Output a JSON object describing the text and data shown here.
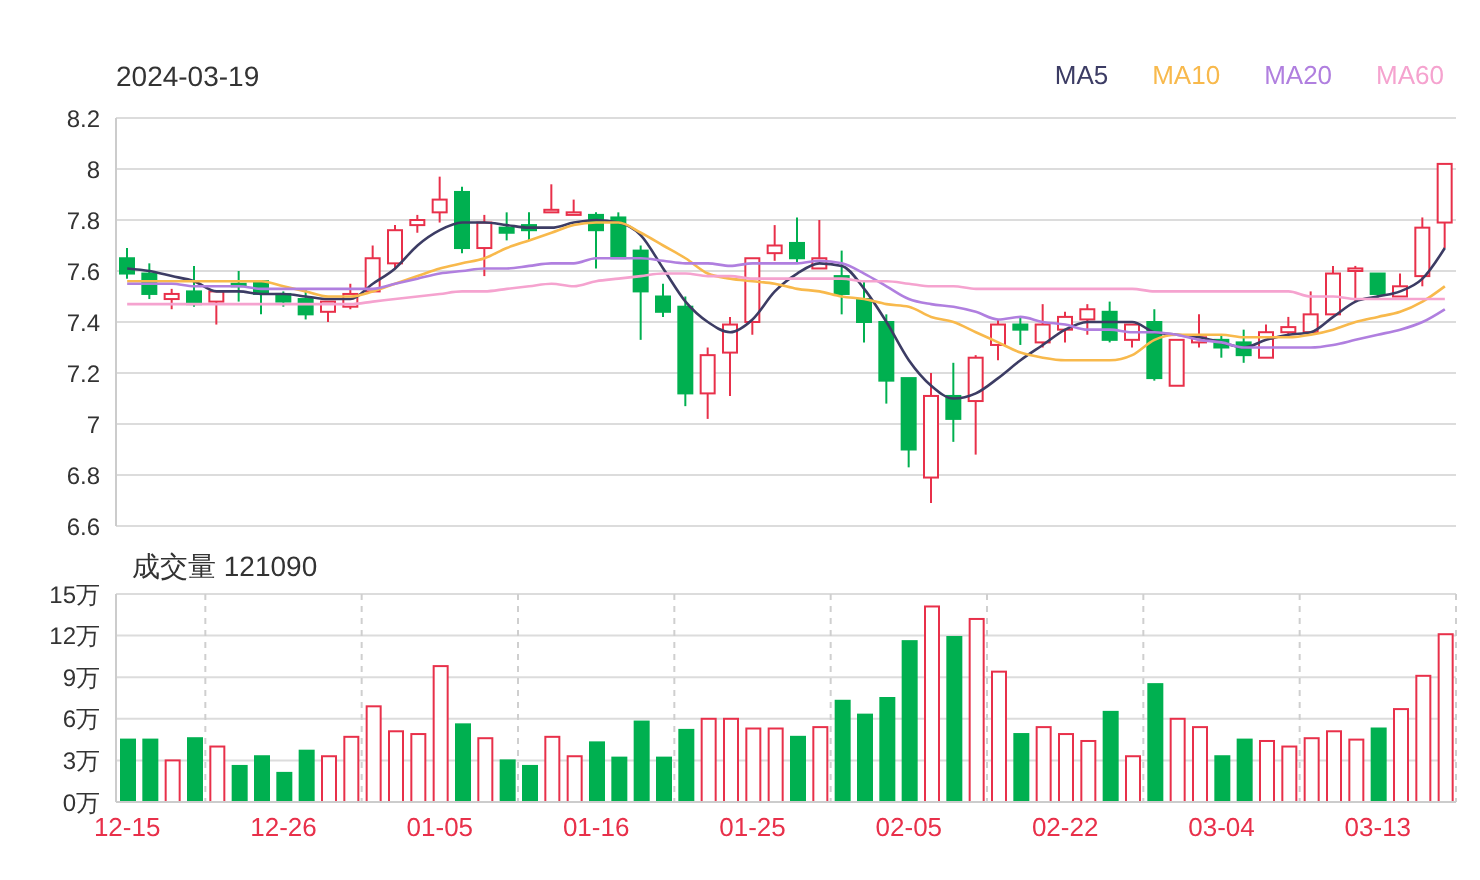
{
  "chart_data": [
    {
      "type": "candlestick",
      "title": "2024-03-19",
      "legend": "top right",
      "grid": true,
      "tick_labels": "y",
      "categories": [
        null,
        null,
        null,
        null,
        null,
        null,
        null,
        null,
        null,
        null,
        null,
        null,
        null,
        null,
        null,
        null,
        null,
        null,
        null,
        null,
        null,
        null,
        null,
        null,
        null,
        null,
        null,
        null,
        null,
        null,
        null,
        null,
        null,
        null,
        null,
        null,
        null,
        null,
        null,
        null,
        null,
        null,
        null,
        null,
        null,
        null,
        null,
        null,
        null,
        null,
        null,
        null,
        null,
        null,
        null,
        null,
        null,
        null,
        null,
        null
      ],
      "ylim": [
        6.6,
        8.2
      ],
      "yticks": [
        6.6,
        6.8,
        7,
        7.2,
        7.4,
        7.6,
        7.8,
        8,
        8.2
      ],
      "ohlc": [
        [
          7.65,
          7.69,
          7.57,
          7.59
        ],
        [
          7.59,
          7.63,
          7.49,
          7.51
        ],
        [
          7.49,
          7.53,
          7.45,
          7.51
        ],
        [
          7.52,
          7.62,
          7.46,
          7.47
        ],
        [
          7.48,
          7.52,
          7.39,
          7.52
        ],
        [
          7.55,
          7.6,
          7.48,
          7.54
        ],
        [
          7.56,
          7.56,
          7.43,
          7.51
        ],
        [
          7.51,
          7.52,
          7.46,
          7.48
        ],
        [
          7.49,
          7.53,
          7.41,
          7.43
        ],
        [
          7.44,
          7.48,
          7.4,
          7.48
        ],
        [
          7.46,
          7.55,
          7.45,
          7.51
        ],
        [
          7.52,
          7.7,
          7.52,
          7.65
        ],
        [
          7.63,
          7.78,
          7.61,
          7.76
        ],
        [
          7.78,
          7.82,
          7.75,
          7.8
        ],
        [
          7.83,
          7.97,
          7.79,
          7.88
        ],
        [
          7.91,
          7.93,
          7.67,
          7.69
        ],
        [
          7.69,
          7.82,
          7.58,
          7.79
        ],
        [
          7.77,
          7.83,
          7.72,
          7.75
        ],
        [
          7.78,
          7.83,
          7.72,
          7.76
        ],
        [
          7.83,
          7.94,
          7.83,
          7.84
        ],
        [
          7.82,
          7.88,
          7.82,
          7.83
        ],
        [
          7.82,
          7.83,
          7.61,
          7.76
        ],
        [
          7.81,
          7.83,
          7.65,
          7.65
        ],
        [
          7.68,
          7.7,
          7.33,
          7.52
        ],
        [
          7.5,
          7.55,
          7.42,
          7.44
        ],
        [
          7.46,
          7.5,
          7.07,
          7.12
        ],
        [
          7.12,
          7.3,
          7.02,
          7.27
        ],
        [
          7.28,
          7.42,
          7.11,
          7.39
        ],
        [
          7.4,
          7.65,
          7.35,
          7.65
        ],
        [
          7.67,
          7.78,
          7.64,
          7.7
        ],
        [
          7.71,
          7.81,
          7.63,
          7.65
        ],
        [
          7.61,
          7.8,
          7.61,
          7.65
        ],
        [
          7.58,
          7.68,
          7.43,
          7.51
        ],
        [
          7.49,
          7.56,
          7.32,
          7.4
        ],
        [
          7.4,
          7.43,
          7.08,
          7.17
        ],
        [
          7.18,
          7.18,
          6.83,
          6.9
        ],
        [
          6.79,
          7.2,
          6.69,
          7.11
        ],
        [
          7.11,
          7.24,
          6.93,
          7.02
        ],
        [
          7.09,
          7.27,
          6.88,
          7.26
        ],
        [
          7.31,
          7.41,
          7.25,
          7.39
        ],
        [
          7.39,
          7.42,
          7.31,
          7.37
        ],
        [
          7.32,
          7.47,
          7.3,
          7.39
        ],
        [
          7.37,
          7.44,
          7.32,
          7.42
        ],
        [
          7.41,
          7.47,
          7.35,
          7.45
        ],
        [
          7.44,
          7.48,
          7.32,
          7.33
        ],
        [
          7.33,
          7.39,
          7.3,
          7.39
        ],
        [
          7.4,
          7.45,
          7.17,
          7.18
        ],
        [
          7.15,
          7.33,
          7.15,
          7.33
        ],
        [
          7.32,
          7.43,
          7.3,
          7.34
        ],
        [
          7.33,
          7.35,
          7.26,
          7.3
        ],
        [
          7.32,
          7.37,
          7.24,
          7.27
        ],
        [
          7.26,
          7.39,
          7.26,
          7.36
        ],
        [
          7.36,
          7.42,
          7.34,
          7.38
        ],
        [
          7.36,
          7.52,
          7.36,
          7.43
        ],
        [
          7.43,
          7.62,
          7.43,
          7.59
        ],
        [
          7.6,
          7.62,
          7.48,
          7.61
        ],
        [
          7.59,
          7.59,
          7.49,
          7.51
        ],
        [
          7.5,
          7.59,
          7.5,
          7.54
        ],
        [
          7.58,
          7.81,
          7.54,
          7.77
        ],
        [
          7.79,
          8.02,
          7.69,
          8.02
        ]
      ],
      "colors": [
        "#00b050",
        "#00b050",
        "#e8304a",
        "#00b050",
        "#e8304a",
        "#00b050",
        "#00b050",
        "#00b050",
        "#00b050",
        "#e8304a",
        "#e8304a",
        "#e8304a",
        "#e8304a",
        "#e8304a",
        "#e8304a",
        "#00b050",
        "#e8304a",
        "#00b050",
        "#00b050",
        "#e8304a",
        "#e8304a",
        "#00b050",
        "#00b050",
        "#00b050",
        "#00b050",
        "#00b050",
        "#e8304a",
        "#e8304a",
        "#e8304a",
        "#e8304a",
        "#00b050",
        "#e8304a",
        "#00b050",
        "#00b050",
        "#00b050",
        "#00b050",
        "#e8304a",
        "#00b050",
        "#e8304a",
        "#e8304a",
        "#00b050",
        "#e8304a",
        "#e8304a",
        "#e8304a",
        "#00b050",
        "#e8304a",
        "#00b050",
        "#e8304a",
        "#e8304a",
        "#00b050",
        "#00b050",
        "#e8304a",
        "#e8304a",
        "#e8304a",
        "#e8304a",
        "#e8304a",
        "#00b050",
        "#e8304a",
        "#e8304a",
        "#e8304a"
      ],
      "series": [
        {
          "name": "MA5",
          "type": "line",
          "color": "#3c3c64",
          "values": [
            7.61,
            7.6,
            7.58,
            7.56,
            7.52,
            7.52,
            7.51,
            7.51,
            7.5,
            7.49,
            7.49,
            7.55,
            7.61,
            7.7,
            7.76,
            7.79,
            7.79,
            7.78,
            7.77,
            7.77,
            7.79,
            7.8,
            7.79,
            7.74,
            7.61,
            7.48,
            7.4,
            7.36,
            7.41,
            7.52,
            7.59,
            7.63,
            7.62,
            7.53,
            7.4,
            7.25,
            7.15,
            7.1,
            7.12,
            7.18,
            7.25,
            7.31,
            7.37,
            7.4,
            7.4,
            7.4,
            7.36,
            7.35,
            7.34,
            7.32,
            7.3,
            7.33,
            7.35,
            7.36,
            7.42,
            7.48,
            7.5,
            7.52,
            7.57,
            7.69
          ]
        },
        {
          "name": "MA10",
          "type": "line",
          "color": "#f8b94c",
          "values": [
            7.56,
            7.56,
            7.56,
            7.56,
            7.56,
            7.56,
            7.56,
            7.54,
            7.52,
            7.5,
            7.5,
            7.52,
            7.55,
            7.58,
            7.61,
            7.63,
            7.65,
            7.69,
            7.72,
            7.75,
            7.78,
            7.79,
            7.79,
            7.75,
            7.7,
            7.65,
            7.59,
            7.57,
            7.56,
            7.55,
            7.53,
            7.52,
            7.5,
            7.49,
            7.47,
            7.46,
            7.42,
            7.4,
            7.36,
            7.32,
            7.28,
            7.26,
            7.25,
            7.25,
            7.25,
            7.27,
            7.33,
            7.35,
            7.35,
            7.35,
            7.34,
            7.34,
            7.34,
            7.35,
            7.37,
            7.4,
            7.42,
            7.44,
            7.48,
            7.54
          ]
        },
        {
          "name": "MA20",
          "type": "line",
          "color": "#b07fdf",
          "values": [
            7.55,
            7.55,
            7.55,
            7.54,
            7.54,
            7.54,
            7.53,
            7.53,
            7.53,
            7.53,
            7.53,
            7.53,
            7.55,
            7.57,
            7.59,
            7.6,
            7.61,
            7.61,
            7.62,
            7.63,
            7.63,
            7.65,
            7.65,
            7.65,
            7.64,
            7.63,
            7.63,
            7.62,
            7.63,
            7.63,
            7.63,
            7.64,
            7.63,
            7.59,
            7.54,
            7.49,
            7.47,
            7.46,
            7.44,
            7.41,
            7.42,
            7.4,
            7.39,
            7.37,
            7.37,
            7.36,
            7.36,
            7.35,
            7.33,
            7.32,
            7.3,
            7.3,
            7.3,
            7.3,
            7.31,
            7.33,
            7.35,
            7.37,
            7.4,
            7.45
          ]
        },
        {
          "name": "MA60",
          "type": "line",
          "color": "#f5a3cf",
          "values": [
            7.47,
            7.47,
            7.47,
            7.47,
            7.47,
            7.47,
            7.47,
            7.47,
            7.47,
            7.47,
            7.47,
            7.48,
            7.49,
            7.5,
            7.51,
            7.52,
            7.52,
            7.53,
            7.54,
            7.55,
            7.54,
            7.56,
            7.57,
            7.58,
            7.59,
            7.59,
            7.58,
            7.58,
            7.57,
            7.57,
            7.57,
            7.57,
            7.57,
            7.56,
            7.56,
            7.55,
            7.54,
            7.54,
            7.53,
            7.53,
            7.53,
            7.53,
            7.53,
            7.53,
            7.53,
            7.53,
            7.52,
            7.52,
            7.52,
            7.52,
            7.52,
            7.52,
            7.52,
            7.5,
            7.5,
            7.49,
            7.49,
            7.49,
            7.49,
            7.49
          ]
        }
      ]
    },
    {
      "type": "bar",
      "title": "成交量 121090",
      "grid": true,
      "categories": [
        "12-15",
        null,
        null,
        null,
        null,
        null,
        null,
        "12-26",
        null,
        null,
        null,
        null,
        null,
        null,
        "01-05",
        null,
        null,
        null,
        null,
        null,
        null,
        "01-16",
        null,
        null,
        null,
        null,
        null,
        null,
        "01-25",
        null,
        null,
        null,
        null,
        null,
        null,
        "02-05",
        null,
        null,
        null,
        null,
        null,
        null,
        "02-22",
        null,
        null,
        null,
        null,
        null,
        null,
        "03-04",
        null,
        null,
        null,
        null,
        null,
        null,
        "03-13",
        null,
        null,
        null
      ],
      "ylim": [
        0,
        15
      ],
      "yticks": [
        {
          "value": 0,
          "label": "0万"
        },
        {
          "value": 3,
          "label": "3万"
        },
        {
          "value": 6,
          "label": "6万"
        },
        {
          "value": 9,
          "label": "9万"
        },
        {
          "value": 12,
          "label": "12万"
        },
        {
          "value": 15,
          "label": "15万"
        }
      ],
      "values": [
        4.5,
        4.5,
        3.0,
        4.6,
        4.0,
        2.6,
        3.3,
        2.1,
        3.7,
        3.3,
        4.7,
        6.9,
        5.1,
        4.9,
        9.8,
        5.6,
        4.6,
        3.0,
        2.6,
        4.7,
        3.3,
        4.3,
        3.2,
        5.8,
        3.2,
        5.2,
        6.0,
        6.0,
        5.3,
        5.3,
        4.7,
        5.4,
        7.3,
        6.3,
        7.5,
        11.6,
        14.1,
        11.9,
        13.2,
        9.4,
        4.9,
        5.4,
        4.9,
        4.4,
        6.5,
        3.3,
        8.5,
        6.0,
        5.4,
        3.3,
        4.5,
        4.4,
        4.0,
        4.6,
        5.1,
        4.5,
        5.3,
        6.7,
        9.1,
        12.1
      ],
      "colors": [
        "#00b050",
        "#00b050",
        "#e8304a",
        "#00b050",
        "#e8304a",
        "#00b050",
        "#00b050",
        "#00b050",
        "#00b050",
        "#e8304a",
        "#e8304a",
        "#e8304a",
        "#e8304a",
        "#e8304a",
        "#e8304a",
        "#00b050",
        "#e8304a",
        "#00b050",
        "#00b050",
        "#e8304a",
        "#e8304a",
        "#00b050",
        "#00b050",
        "#00b050",
        "#00b050",
        "#00b050",
        "#e8304a",
        "#e8304a",
        "#e8304a",
        "#e8304a",
        "#00b050",
        "#e8304a",
        "#00b050",
        "#00b050",
        "#00b050",
        "#00b050",
        "#e8304a",
        "#00b050",
        "#e8304a",
        "#e8304a",
        "#00b050",
        "#e8304a",
        "#e8304a",
        "#e8304a",
        "#00b050",
        "#e8304a",
        "#00b050",
        "#e8304a",
        "#e8304a",
        "#00b050",
        "#00b050",
        "#e8304a",
        "#e8304a",
        "#e8304a",
        "#e8304a",
        "#e8304a",
        "#00b050",
        "#e8304a",
        "#e8304a",
        "#e8304a"
      ]
    }
  ]
}
